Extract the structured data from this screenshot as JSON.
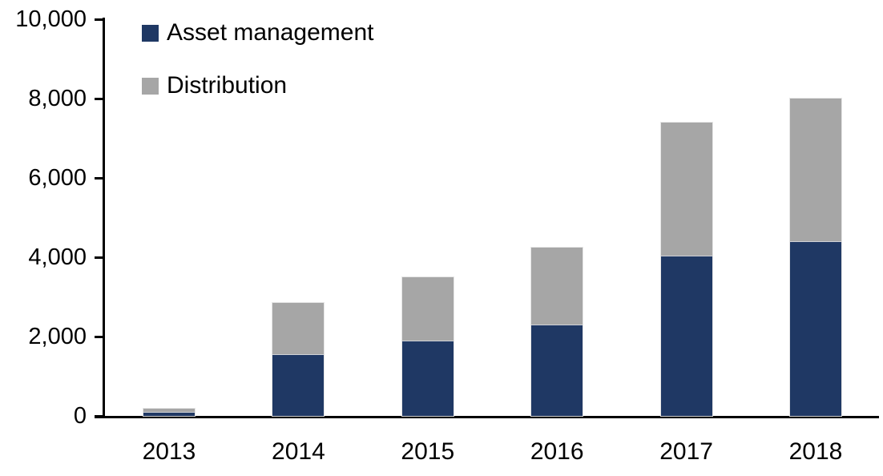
{
  "chart": {
    "background_color": "#FFFFFF",
    "axis_color": "#000000",
    "legend": {
      "items": [
        {
          "label": "Asset management",
          "color": "#1F3864"
        },
        {
          "label": "Distribution",
          "color": "#A6A6A6"
        }
      ]
    }
  },
  "chart_data": {
    "type": "bar",
    "stacked": true,
    "title": "",
    "xlabel": "",
    "ylabel": "",
    "categories": [
      "2013",
      "2014",
      "2015",
      "2016",
      "2017",
      "2018"
    ],
    "series": [
      {
        "name": "Asset management",
        "color": "#1F3864",
        "values": [
          100,
          1550,
          1900,
          2300,
          4050,
          4400
        ]
      },
      {
        "name": "Distribution",
        "color": "#A6A6A6",
        "values": [
          90,
          1300,
          1600,
          1950,
          3350,
          3600
        ]
      }
    ],
    "totals": [
      190,
      2850,
      3500,
      4250,
      7400,
      8000
    ],
    "ylim": [
      0,
      10000
    ],
    "yticks": [
      0,
      2000,
      4000,
      6000,
      8000,
      10000
    ],
    "ytick_labels": [
      "0",
      "2,000",
      "4,000",
      "6,000",
      "8,000",
      "10,000"
    ],
    "grid": false,
    "legend_position": "top-left"
  }
}
